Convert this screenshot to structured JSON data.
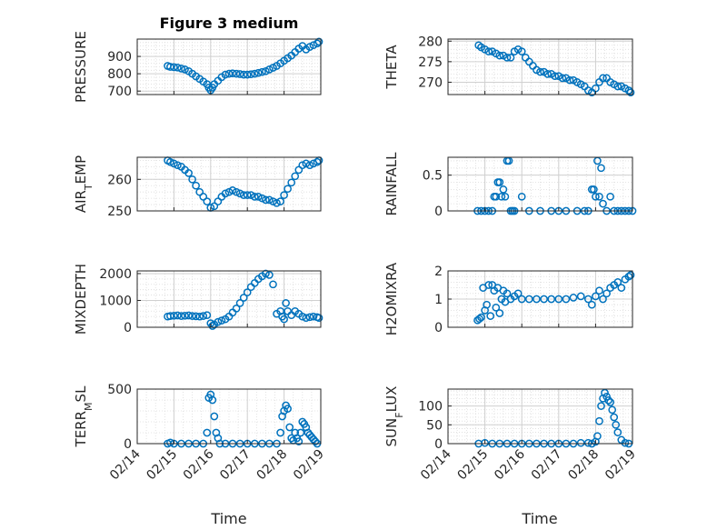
{
  "figure_title": "Figure 3 medium",
  "x_axis_label": "Time",
  "x_tick_labels": [
    "02/14",
    "02/15",
    "02/16",
    "02/17",
    "02/18",
    "02/19"
  ],
  "marker_color": "#0072BD",
  "grid_color": "#dcdcdc",
  "chart_data": [
    {
      "type": "scatter",
      "panel": "pressure",
      "title": "Figure 3 medium",
      "ylabel": "PRESSURE",
      "xlabel": "",
      "xlim": [
        0,
        5
      ],
      "ylim": [
        680,
        1000
      ],
      "yticks": [
        700,
        800,
        900
      ],
      "grid": true,
      "x": [
        0.83,
        0.9,
        1.0,
        1.1,
        1.2,
        1.3,
        1.4,
        1.5,
        1.6,
        1.7,
        1.8,
        1.9,
        1.95,
        2.0,
        2.05,
        2.1,
        2.2,
        2.3,
        2.4,
        2.5,
        2.6,
        2.7,
        2.8,
        2.9,
        3.0,
        3.1,
        3.2,
        3.3,
        3.4,
        3.5,
        3.6,
        3.7,
        3.8,
        3.9,
        4.0,
        4.1,
        4.2,
        4.3,
        4.4,
        4.5,
        4.6,
        4.7,
        4.8,
        4.9,
        4.95
      ],
      "y": [
        845,
        840,
        838,
        836,
        830,
        825,
        815,
        800,
        785,
        770,
        755,
        740,
        720,
        705,
        720,
        740,
        760,
        780,
        795,
        800,
        802,
        800,
        798,
        795,
        795,
        797,
        800,
        805,
        810,
        815,
        825,
        835,
        845,
        860,
        875,
        890,
        905,
        925,
        945,
        960,
        940,
        955,
        965,
        975,
        985
      ]
    },
    {
      "type": "scatter",
      "panel": "theta",
      "ylabel": "THETA",
      "xlabel": "",
      "xlim": [
        0,
        5
      ],
      "ylim": [
        267,
        280.5
      ],
      "yticks": [
        270,
        275,
        280
      ],
      "grid": true,
      "x": [
        0.83,
        0.9,
        1.0,
        1.1,
        1.2,
        1.3,
        1.4,
        1.5,
        1.6,
        1.7,
        1.8,
        1.9,
        2.0,
        2.1,
        2.2,
        2.3,
        2.4,
        2.5,
        2.6,
        2.7,
        2.8,
        2.9,
        3.0,
        3.1,
        3.2,
        3.3,
        3.4,
        3.5,
        3.6,
        3.7,
        3.8,
        3.9,
        4.0,
        4.1,
        4.2,
        4.3,
        4.4,
        4.5,
        4.6,
        4.7,
        4.8,
        4.9,
        4.95
      ],
      "y": [
        279,
        278.5,
        278,
        277.5,
        277.5,
        277,
        276.5,
        276.5,
        276,
        276,
        277.5,
        278,
        277.5,
        276,
        275,
        274,
        273,
        272.5,
        272.5,
        272,
        272,
        271.5,
        271.5,
        271,
        271,
        270.5,
        270.5,
        270,
        269.5,
        269,
        268,
        267.5,
        268.5,
        270,
        271,
        271,
        270,
        269.5,
        269,
        269,
        268.5,
        268,
        267.5
      ]
    },
    {
      "type": "scatter",
      "panel": "air_temp",
      "ylabel": "AIR_TEMP",
      "xlabel": "",
      "xlim": [
        0,
        5
      ],
      "ylim": [
        250,
        267
      ],
      "yticks": [
        250,
        260
      ],
      "grid": true,
      "x": [
        0.83,
        0.9,
        1.0,
        1.1,
        1.2,
        1.3,
        1.4,
        1.5,
        1.6,
        1.7,
        1.8,
        1.9,
        2.0,
        2.1,
        2.2,
        2.3,
        2.4,
        2.5,
        2.6,
        2.7,
        2.8,
        2.9,
        3.0,
        3.1,
        3.2,
        3.3,
        3.4,
        3.5,
        3.6,
        3.7,
        3.8,
        3.9,
        4.0,
        4.1,
        4.2,
        4.3,
        4.4,
        4.5,
        4.6,
        4.7,
        4.8,
        4.9,
        4.95
      ],
      "y": [
        266,
        265.5,
        265,
        264.5,
        264,
        263,
        262,
        260,
        258,
        256,
        254.5,
        253,
        251,
        251.5,
        253,
        254.5,
        255.5,
        256,
        256.5,
        256,
        255.5,
        255,
        255,
        255,
        254.5,
        254.5,
        254,
        253.5,
        253.5,
        253,
        252.5,
        253,
        255,
        257,
        259,
        261,
        263,
        264.5,
        265,
        264.5,
        265,
        265.5,
        266
      ]
    },
    {
      "type": "scatter",
      "panel": "rainfall",
      "ylabel": "RAINFALL",
      "xlabel": "",
      "xlim": [
        0,
        5
      ],
      "ylim": [
        0,
        0.75
      ],
      "yticks": [
        0,
        0.5
      ],
      "grid": true,
      "x": [
        0.8,
        0.9,
        1.0,
        1.1,
        1.2,
        1.25,
        1.3,
        1.35,
        1.4,
        1.45,
        1.5,
        1.55,
        1.6,
        1.65,
        1.7,
        1.75,
        1.8,
        2.0,
        2.2,
        2.5,
        2.8,
        3.0,
        3.2,
        3.5,
        3.7,
        3.8,
        3.9,
        3.95,
        4.0,
        4.05,
        4.1,
        4.15,
        4.2,
        4.3,
        4.4,
        4.5,
        4.6,
        4.7,
        4.8,
        4.9,
        5.0
      ],
      "y": [
        0,
        0,
        0,
        0,
        0,
        0.2,
        0.2,
        0.4,
        0.4,
        0.2,
        0.3,
        0.2,
        0.7,
        0.7,
        0,
        0,
        0,
        0.2,
        0,
        0,
        0,
        0,
        0,
        0,
        0,
        0,
        0.3,
        0.3,
        0.2,
        0.7,
        0.2,
        0.6,
        0.1,
        0,
        0.2,
        0,
        0,
        0,
        0,
        0,
        0
      ]
    },
    {
      "type": "scatter",
      "panel": "mixdepth",
      "ylabel": "MIXDEPTH",
      "xlabel": "",
      "xlim": [
        0,
        5
      ],
      "ylim": [
        0,
        2100
      ],
      "yticks": [
        0,
        1000,
        2000
      ],
      "grid": true,
      "x": [
        0.83,
        0.9,
        1.0,
        1.1,
        1.2,
        1.3,
        1.4,
        1.5,
        1.6,
        1.7,
        1.8,
        1.9,
        2.0,
        2.05,
        2.1,
        2.2,
        2.3,
        2.4,
        2.5,
        2.6,
        2.7,
        2.8,
        2.9,
        3.0,
        3.1,
        3.2,
        3.3,
        3.4,
        3.5,
        3.6,
        3.7,
        3.8,
        3.9,
        3.95,
        4.0,
        4.05,
        4.1,
        4.2,
        4.3,
        4.4,
        4.5,
        4.6,
        4.7,
        4.8,
        4.9,
        4.95
      ],
      "y": [
        400,
        420,
        430,
        440,
        420,
        430,
        440,
        420,
        410,
        400,
        420,
        450,
        150,
        50,
        100,
        200,
        250,
        300,
        400,
        550,
        700,
        900,
        1100,
        1300,
        1500,
        1650,
        1800,
        1900,
        2000,
        1950,
        1600,
        500,
        600,
        400,
        300,
        900,
        600,
        450,
        600,
        500,
        400,
        350,
        380,
        400,
        380,
        350
      ]
    },
    {
      "type": "scatter",
      "panel": "h2omixra",
      "ylabel": "H2OMIXRA",
      "xlabel": "",
      "xlim": [
        0,
        5
      ],
      "ylim": [
        0,
        2
      ],
      "yticks": [
        0,
        1,
        2
      ],
      "grid": true,
      "x": [
        0.8,
        0.85,
        0.9,
        0.95,
        1.0,
        1.05,
        1.1,
        1.15,
        1.2,
        1.25,
        1.3,
        1.35,
        1.4,
        1.45,
        1.5,
        1.55,
        1.6,
        1.7,
        1.8,
        1.9,
        2.0,
        2.2,
        2.4,
        2.6,
        2.8,
        3.0,
        3.2,
        3.4,
        3.6,
        3.8,
        3.9,
        4.0,
        4.1,
        4.2,
        4.3,
        4.4,
        4.5,
        4.6,
        4.7,
        4.8,
        4.9,
        4.95
      ],
      "y": [
        0.25,
        0.3,
        0.35,
        1.4,
        0.6,
        0.8,
        1.5,
        0.4,
        1.5,
        1.3,
        0.7,
        1.4,
        0.5,
        1.0,
        1.3,
        0.9,
        1.2,
        1.0,
        1.1,
        1.2,
        1.0,
        1.0,
        1.0,
        1.0,
        1.0,
        1.0,
        1.0,
        1.05,
        1.1,
        1.0,
        0.8,
        1.1,
        1.3,
        1.0,
        1.2,
        1.4,
        1.5,
        1.6,
        1.4,
        1.7,
        1.8,
        1.85
      ]
    },
    {
      "type": "scatter",
      "panel": "terr_msl",
      "ylabel": "TERR_MSL",
      "xlabel": "Time",
      "xlim": [
        0,
        5
      ],
      "ylim": [
        0,
        500
      ],
      "yticks": [
        0,
        500
      ],
      "grid": true,
      "x": [
        0.83,
        0.9,
        1.0,
        1.2,
        1.4,
        1.6,
        1.8,
        1.9,
        1.95,
        2.0,
        2.05,
        2.1,
        2.15,
        2.2,
        2.25,
        2.4,
        2.6,
        2.8,
        3.0,
        3.2,
        3.4,
        3.6,
        3.8,
        3.9,
        3.95,
        4.0,
        4.05,
        4.1,
        4.15,
        4.2,
        4.25,
        4.3,
        4.35,
        4.4,
        4.45,
        4.5,
        4.55,
        4.6,
        4.65,
        4.7,
        4.75,
        4.8,
        4.85,
        4.9
      ],
      "y": [
        0,
        10,
        0,
        0,
        0,
        0,
        0,
        100,
        420,
        450,
        400,
        250,
        100,
        50,
        0,
        0,
        0,
        0,
        0,
        0,
        0,
        0,
        0,
        100,
        250,
        300,
        350,
        320,
        150,
        50,
        30,
        100,
        50,
        20,
        100,
        200,
        180,
        150,
        100,
        80,
        60,
        40,
        20,
        0
      ]
    },
    {
      "type": "scatter",
      "panel": "sun_flux",
      "ylabel": "SUN_FLUX",
      "xlabel": "Time",
      "xlim": [
        0,
        5
      ],
      "ylim": [
        0,
        145
      ],
      "yticks": [
        0,
        50,
        100
      ],
      "grid": true,
      "x": [
        0.83,
        1.0,
        1.2,
        1.4,
        1.6,
        1.8,
        2.0,
        2.2,
        2.4,
        2.6,
        2.8,
        3.0,
        3.2,
        3.4,
        3.6,
        3.8,
        3.9,
        4.0,
        4.05,
        4.1,
        4.15,
        4.2,
        4.25,
        4.3,
        4.35,
        4.4,
        4.45,
        4.5,
        4.55,
        4.6,
        4.7,
        4.8,
        4.9
      ],
      "y": [
        0,
        2,
        0,
        0,
        0,
        0,
        0,
        0,
        0,
        0,
        0,
        0,
        0,
        0,
        2,
        2,
        0,
        5,
        20,
        60,
        100,
        120,
        135,
        125,
        115,
        110,
        90,
        70,
        50,
        30,
        10,
        2,
        0
      ]
    }
  ]
}
